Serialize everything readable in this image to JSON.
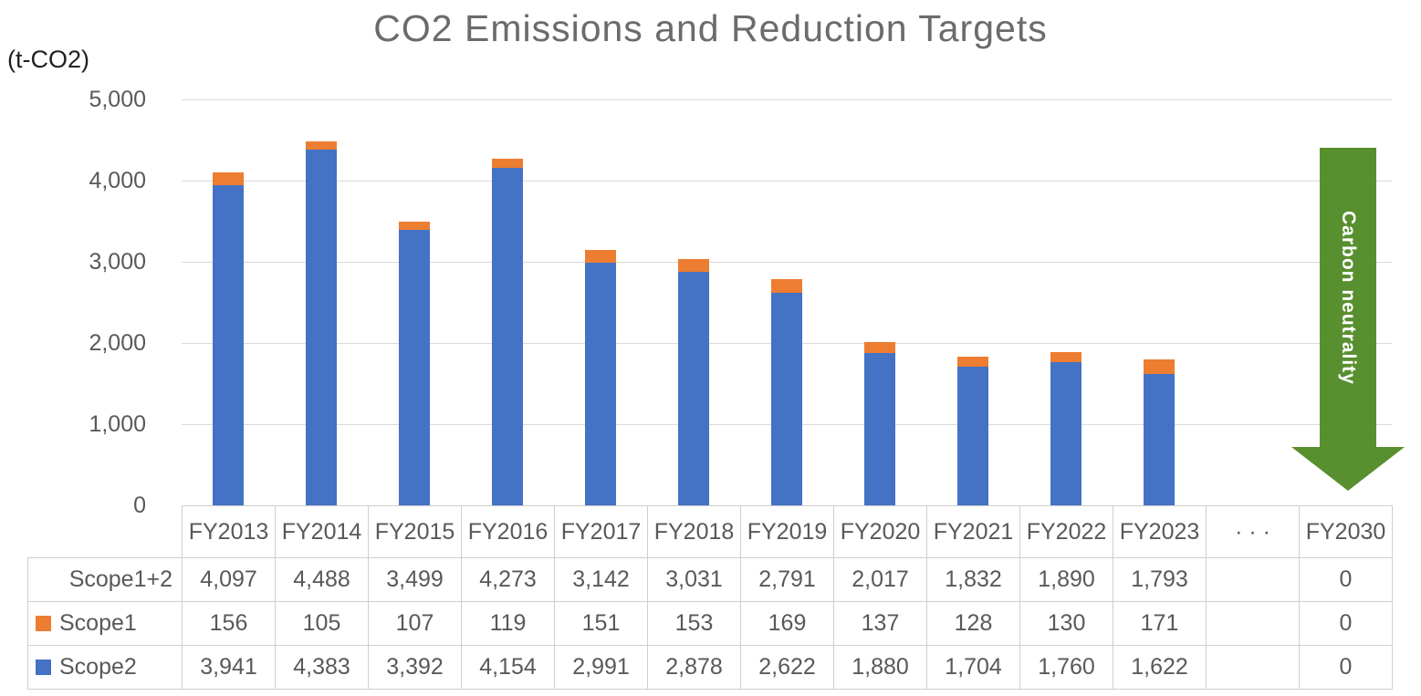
{
  "title": "CO2 Emissions and Reduction Targets",
  "y_axis_unit": "(t-CO2)",
  "arrow": {
    "label": "Carbon neutrality",
    "color": "#588F2F"
  },
  "colors": {
    "scope1": "#ED7D31",
    "scope2": "#4472C4",
    "gridline": "#D9D9D9",
    "table_border": "#D0CECE",
    "text": "#595959"
  },
  "chart_data": {
    "type": "bar",
    "stacked": true,
    "title": "CO2 Emissions and Reduction Targets",
    "ylabel": "(t-CO2)",
    "ylim": [
      0,
      5000
    ],
    "yticks": [
      "5,000",
      "4,000",
      "3,000",
      "2,000",
      "1,000",
      "0"
    ],
    "grid": true,
    "legend_position": "table-row-keys",
    "categories": [
      "FY2013",
      "FY2014",
      "FY2015",
      "FY2016",
      "FY2017",
      "FY2018",
      "FY2019",
      "FY2020",
      "FY2021",
      "FY2022",
      "FY2023",
      "· · ·",
      "FY2030"
    ],
    "series": [
      {
        "name": "Scope1",
        "color": "#ED7D31",
        "values": [
          156,
          105,
          107,
          119,
          151,
          153,
          169,
          137,
          128,
          130,
          171,
          null,
          0
        ]
      },
      {
        "name": "Scope2",
        "color": "#4472C4",
        "values": [
          3941,
          4383,
          3392,
          4154,
          2991,
          2878,
          2622,
          1880,
          1704,
          1760,
          1622,
          null,
          0
        ]
      }
    ],
    "totals": {
      "name": "Scope1+2",
      "values": [
        4097,
        4488,
        3499,
        4273,
        3142,
        3031,
        2791,
        2017,
        1832,
        1890,
        1793,
        null,
        0
      ]
    },
    "annotation": "Carbon neutrality arrow pointing down at FY2030"
  },
  "table": {
    "header": [
      "FY2013",
      "FY2014",
      "FY2015",
      "FY2016",
      "FY2017",
      "FY2018",
      "FY2019",
      "FY2020",
      "FY2021",
      "FY2022",
      "FY2023",
      "· · ·",
      "FY2030"
    ],
    "rows": [
      {
        "label": "Scope1+2",
        "key_color": null,
        "values": [
          "4,097",
          "4,488",
          "3,499",
          "4,273",
          "3,142",
          "3,031",
          "2,791",
          "2,017",
          "1,832",
          "1,890",
          "1,793",
          "",
          "0"
        ]
      },
      {
        "label": "Scope1",
        "key_color": "#ED7D31",
        "values": [
          "156",
          "105",
          "107",
          "119",
          "151",
          "153",
          "169",
          "137",
          "128",
          "130",
          "171",
          "",
          "0"
        ]
      },
      {
        "label": "Scope2",
        "key_color": "#4472C4",
        "values": [
          "3,941",
          "4,383",
          "3,392",
          "4,154",
          "2,991",
          "2,878",
          "2,622",
          "1,880",
          "1,704",
          "1,760",
          "1,622",
          "",
          "0"
        ]
      }
    ]
  }
}
